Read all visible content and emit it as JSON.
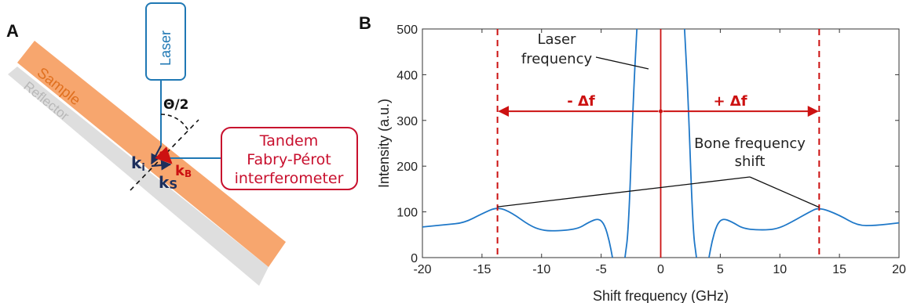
{
  "panel_a": {
    "label": "A",
    "laser_label": "Laser",
    "sample_label": "Sample",
    "reflector_label": "Reflector",
    "angle_label": "Θ/2",
    "k_i": "k",
    "k_i_sub": "i",
    "k_s": "k",
    "k_s_sub": "S",
    "k_b": "k",
    "k_b_sub": "B",
    "interferometer_lines": [
      "Tandem",
      "Fabry-Pérot",
      "interferometer"
    ],
    "colors": {
      "sample": "#f7a66e",
      "reflector": "#dedede",
      "laser_box": "#1f78b4",
      "interferometer": "#c8102e",
      "k_vectors": "#1d2f5c",
      "k_b": "#cc1111"
    }
  },
  "panel_b": {
    "label": "B",
    "annotations": {
      "laser_frequency": [
        "Laser",
        "frequency"
      ],
      "bone_shift": [
        "Bone frequency",
        "shift"
      ],
      "minus_df": "- Δf",
      "plus_df": "+ Δf"
    }
  },
  "chart_data": {
    "type": "line",
    "xlabel": "Shift frequency (GHz)",
    "ylabel": "Intensity (a.u.)",
    "xlim": [
      -20,
      20
    ],
    "ylim": [
      0,
      500
    ],
    "xticks": [
      -20,
      -15,
      -10,
      -5,
      0,
      5,
      10,
      15,
      20
    ],
    "yticks": [
      0,
      100,
      200,
      300,
      400,
      500
    ],
    "grid": false,
    "series": [
      {
        "color": "#1f78c8",
        "x": [
          -20,
          -18,
          -16.5,
          -15,
          -13.7,
          -12.5,
          -11,
          -10,
          -9,
          -7,
          -6,
          -5.2,
          -4.7,
          -4.3,
          -4.05,
          -3.9,
          -3.5,
          -3,
          -2.7,
          -2.3,
          -2,
          -1.7,
          -1.2,
          -0.5,
          0,
          0.5,
          1.2,
          1.7,
          2,
          2.3,
          2.7,
          3,
          3.5,
          3.9,
          4.05,
          4.3,
          4.7,
          5.2,
          6,
          7,
          9,
          10,
          11,
          12.5,
          13.3,
          15,
          16.5,
          18,
          20
        ],
        "y": [
          67,
          72,
          76,
          96,
          111,
          98,
          70,
          60,
          58,
          62,
          78,
          86,
          72,
          35,
          0,
          null,
          null,
          0,
          60,
          350,
          500,
          null,
          null,
          null,
          null,
          null,
          null,
          null,
          500,
          350,
          60,
          0,
          null,
          null,
          0,
          35,
          72,
          86,
          78,
          62,
          60,
          65,
          78,
          100,
          110,
          93,
          70,
          70,
          76
        ]
      }
    ],
    "markers": {
      "laser_line_x": 0,
      "dashed_lines_x": [
        -13.7,
        13.3
      ],
      "arrow_y": 320,
      "marker_color": "#cc1111"
    }
  }
}
